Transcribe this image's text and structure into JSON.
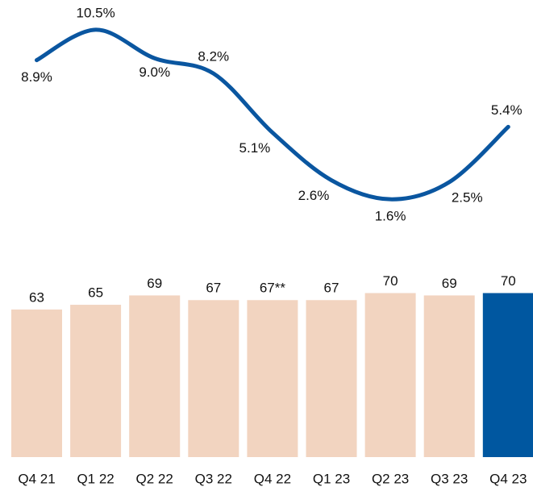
{
  "chart_data": [
    {
      "type": "line",
      "values": [
        8.9,
        10.5,
        9.0,
        8.2,
        5.1,
        2.6,
        1.6,
        2.5,
        5.4
      ],
      "value_labels": [
        "8.9%",
        "10.5%",
        "9.0%",
        "8.2%",
        "5.1%",
        "2.6%",
        "1.6%",
        "2.5%",
        "5.4%"
      ],
      "color": "#0a56a0",
      "ylim": [
        0,
        11
      ]
    },
    {
      "type": "bar",
      "categories": [
        "Q4 21",
        "Q1 22",
        "Q2 22",
        "Q3 22",
        "Q4 22",
        "Q1 23",
        "Q2 23",
        "Q3 23",
        "Q4 23"
      ],
      "values": [
        63,
        65,
        69,
        67,
        67,
        67,
        70,
        69,
        70
      ],
      "value_labels": [
        "63",
        "65",
        "69",
        "67",
        "67**",
        "67",
        "70",
        "69",
        "70"
      ],
      "colors": [
        "#f2d4c0",
        "#f2d4c0",
        "#f2d4c0",
        "#f2d4c0",
        "#f2d4c0",
        "#f2d4c0",
        "#f2d4c0",
        "#f2d4c0",
        "#0057a0"
      ],
      "ylim": [
        0,
        75
      ]
    }
  ]
}
